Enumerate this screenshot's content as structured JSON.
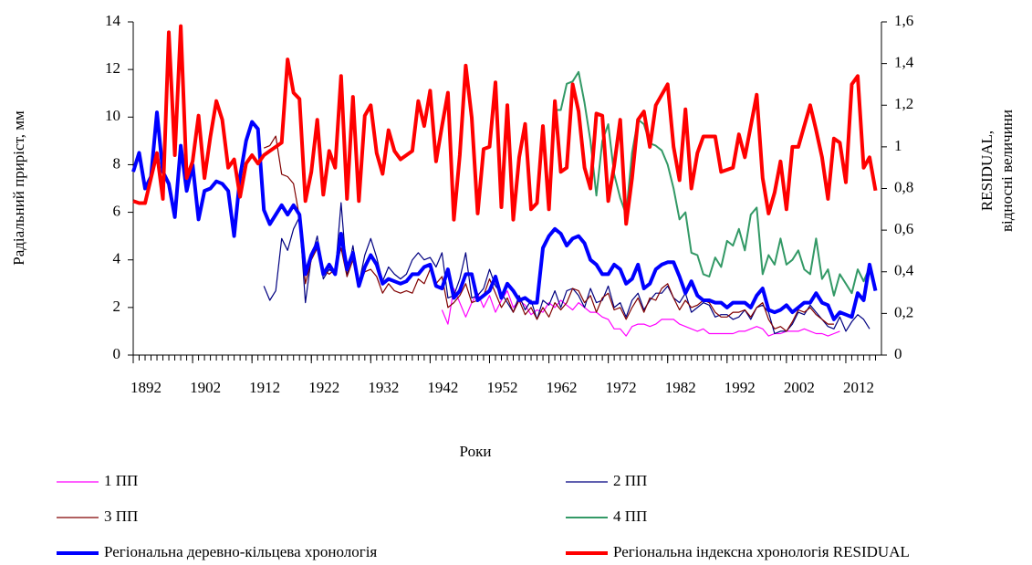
{
  "chart_data": {
    "type": "line",
    "x_label": "Роки",
    "y_label": "Радіальний приріст, мм",
    "y2_label": [
      "RESIDUAL,",
      "відносні величини"
    ],
    "xlim": [
      1892,
      2018
    ],
    "xticks": [
      1892,
      1902,
      1912,
      1922,
      1932,
      1942,
      1952,
      1962,
      1972,
      1982,
      1992,
      2002,
      2012
    ],
    "ylim": [
      0,
      14
    ],
    "yticks": [
      0,
      2,
      4,
      6,
      8,
      10,
      12,
      14
    ],
    "y2lim": [
      0,
      1.6
    ],
    "y2ticks": [
      0,
      {
        "value": 0.2,
        "label": "0,2"
      },
      {
        "value": 0.4,
        "label": "0,4"
      },
      {
        "value": 0.6,
        "label": "0,6"
      },
      {
        "value": 0.8,
        "label": "0,8"
      },
      {
        "value": 1,
        "label": "1"
      },
      {
        "value": 1.2,
        "label": "1,2"
      },
      {
        "value": 1.4,
        "label": "1,4"
      },
      {
        "value": 1.6,
        "label": "1,6"
      }
    ],
    "x": [
      1892,
      1893,
      1894,
      1895,
      1896,
      1897,
      1898,
      1899,
      1900,
      1901,
      1902,
      1903,
      1904,
      1905,
      1906,
      1907,
      1908,
      1909,
      1910,
      1911,
      1912,
      1913,
      1914,
      1915,
      1916,
      1917,
      1918,
      1919,
      1920,
      1921,
      1922,
      1923,
      1924,
      1925,
      1926,
      1927,
      1928,
      1929,
      1930,
      1931,
      1932,
      1933,
      1934,
      1935,
      1936,
      1937,
      1938,
      1939,
      1940,
      1941,
      1942,
      1943,
      1944,
      1945,
      1946,
      1947,
      1948,
      1949,
      1950,
      1951,
      1952,
      1953,
      1954,
      1955,
      1956,
      1957,
      1958,
      1959,
      1960,
      1961,
      1962,
      1963,
      1964,
      1965,
      1966,
      1967,
      1968,
      1969,
      1970,
      1971,
      1972,
      1973,
      1974,
      1975,
      1976,
      1977,
      1978,
      1979,
      1980,
      1981,
      1982,
      1983,
      1984,
      1985,
      1986,
      1987,
      1988,
      1989,
      1990,
      1991,
      1992,
      1993,
      1994,
      1995,
      1996,
      1997,
      1998,
      1999,
      2000,
      2001,
      2002,
      2003,
      2004,
      2005,
      2006,
      2007,
      2008,
      2009,
      2010,
      2011,
      2012,
      2013,
      2014,
      2015,
      2016,
      2017
    ],
    "series": [
      {
        "name": "1 ПП",
        "color": "#ff00ff",
        "width": 1.2,
        "values": [
          null,
          null,
          null,
          null,
          null,
          null,
          null,
          null,
          null,
          null,
          null,
          null,
          null,
          null,
          null,
          null,
          null,
          null,
          null,
          null,
          null,
          null,
          null,
          null,
          null,
          null,
          null,
          null,
          null,
          null,
          null,
          null,
          null,
          null,
          null,
          null,
          null,
          null,
          null,
          null,
          null,
          null,
          null,
          null,
          null,
          null,
          null,
          null,
          null,
          null,
          null,
          null,
          1.9,
          1.3,
          2.8,
          2.2,
          1.6,
          2.2,
          2.6,
          2.0,
          2.5,
          1.8,
          2.3,
          2.7,
          2.0,
          2.3,
          2.1,
          1.7,
          1.9,
          1.8,
          2.2,
          2.0,
          2.3,
          2.1,
          1.9,
          2.2,
          2.0,
          1.8,
          1.8,
          1.6,
          1.5,
          1.1,
          1.1,
          0.8,
          1.2,
          1.3,
          1.3,
          1.2,
          1.3,
          1.5,
          1.5,
          1.5,
          1.3,
          1.2,
          1.1,
          1.0,
          1.1,
          0.9,
          0.9,
          0.9,
          0.9,
          0.9,
          1.0,
          1.0,
          1.1,
          1.2,
          1.1,
          0.8,
          0.9,
          0.9,
          1.0,
          1.0,
          1.0,
          1.1,
          1.0,
          0.9,
          0.9,
          0.8,
          0.9,
          1.0,
          null,
          null,
          null,
          null,
          null,
          null
        ]
      },
      {
        "name": "2 ПП",
        "color": "#000080",
        "width": 1.2,
        "values": [
          null,
          null,
          null,
          null,
          null,
          null,
          null,
          null,
          null,
          null,
          null,
          null,
          null,
          null,
          null,
          null,
          null,
          null,
          null,
          null,
          null,
          null,
          2.9,
          2.3,
          2.7,
          4.9,
          4.4,
          5.3,
          5.8,
          2.2,
          4.1,
          5.0,
          3.2,
          3.6,
          3.4,
          6.4,
          3.3,
          4.6,
          3.0,
          4.2,
          4.9,
          4.1,
          3.1,
          3.7,
          3.4,
          3.2,
          3.4,
          4.0,
          4.3,
          4.0,
          4.1,
          3.7,
          4.3,
          2.4,
          2.5,
          3.2,
          4.3,
          2.4,
          2.5,
          2.8,
          3.6,
          2.9,
          2.6,
          2.2,
          1.8,
          2.5,
          1.9,
          2.3,
          1.5,
          2.3,
          2.1,
          2.7,
          2.0,
          2.7,
          2.8,
          2.5,
          2.0,
          2.8,
          2.2,
          2.3,
          2.9,
          2.0,
          2.2,
          1.6,
          2.3,
          2.6,
          1.9,
          2.3,
          2.6,
          2.6,
          2.9,
          2.4,
          2.2,
          2.6,
          1.8,
          2.0,
          2.2,
          2.1,
          1.6,
          1.7,
          1.7,
          1.5,
          1.6,
          1.9,
          1.5,
          2.0,
          2.1,
          1.8,
          0.9,
          1.0,
          1.0,
          1.3,
          1.8,
          1.7,
          2.1,
          1.8,
          1.5,
          1.2,
          1.1,
          1.6,
          1.0,
          1.4,
          1.7,
          1.5,
          1.1,
          null
        ]
      },
      {
        "name": "3 ПП",
        "color": "#800000",
        "width": 1.2,
        "values": [
          null,
          null,
          null,
          null,
          null,
          null,
          null,
          null,
          null,
          null,
          null,
          null,
          null,
          null,
          null,
          null,
          null,
          null,
          null,
          null,
          null,
          null,
          8.7,
          8.8,
          9.2,
          7.6,
          7.5,
          7.2,
          5.8,
          3.0,
          4.0,
          4.5,
          3.6,
          3.4,
          3.6,
          4.5,
          3.3,
          4.0,
          2.9,
          3.5,
          3.6,
          3.3,
          2.6,
          3.0,
          2.7,
          2.6,
          2.7,
          2.6,
          3.2,
          3.0,
          3.6,
          3.0,
          3.3,
          2.0,
          2.2,
          2.5,
          3.0,
          2.2,
          2.3,
          2.5,
          3.2,
          2.6,
          2.0,
          2.4,
          1.8,
          2.3,
          1.7,
          2.0,
          1.5,
          2.0,
          1.6,
          2.2,
          1.9,
          2.2,
          2.8,
          2.7,
          2.2,
          2.5,
          1.8,
          2.4,
          2.6,
          1.9,
          2.0,
          1.5,
          2.0,
          2.4,
          1.8,
          2.4,
          2.3,
          2.8,
          3.0,
          2.4,
          1.9,
          2.3,
          2.0,
          2.1,
          2.3,
          2.2,
          1.8,
          1.6,
          1.6,
          1.8,
          1.8,
          1.9,
          1.6,
          2.0,
          2.2,
          1.5,
          1.1,
          1.2,
          1.0,
          1.4,
          1.9,
          1.8,
          2.0,
          1.7,
          1.5,
          1.3,
          1.3,
          null,
          null,
          null,
          null,
          null,
          null,
          null
        ]
      },
      {
        "name": "4 ПП",
        "color": "#339966",
        "width": 2,
        "values": [
          null,
          null,
          null,
          null,
          null,
          null,
          null,
          null,
          null,
          null,
          null,
          null,
          null,
          null,
          null,
          null,
          null,
          null,
          null,
          null,
          null,
          null,
          null,
          null,
          null,
          null,
          null,
          null,
          null,
          null,
          null,
          null,
          null,
          null,
          null,
          null,
          null,
          null,
          null,
          null,
          null,
          null,
          null,
          null,
          null,
          null,
          null,
          null,
          null,
          null,
          null,
          null,
          null,
          null,
          null,
          null,
          null,
          null,
          null,
          null,
          null,
          null,
          null,
          null,
          null,
          null,
          null,
          null,
          null,
          null,
          null,
          10.3,
          10.3,
          11.4,
          11.5,
          11.9,
          10.6,
          9.0,
          6.7,
          9.0,
          9.7,
          7.6,
          6.6,
          5.9,
          8.5,
          9.9,
          9.7,
          8.9,
          8.8,
          8.6,
          8.0,
          7.0,
          5.7,
          6.0,
          4.3,
          4.2,
          3.4,
          3.3,
          4.1,
          3.7,
          4.8,
          4.6,
          5.3,
          4.4,
          5.9,
          6.2,
          3.4,
          4.2,
          3.8,
          4.9,
          3.8,
          4.0,
          4.4,
          3.6,
          3.4,
          4.9,
          3.2,
          3.6,
          2.5,
          3.4,
          3.0,
          2.6,
          3.6,
          3.1,
          3.7,
          null
        ]
      },
      {
        "name": "Регіональна деревно-кільцева хронологія",
        "color": "#0000ff",
        "width": 4,
        "values": [
          7.7,
          8.5,
          7.0,
          7.5,
          10.2,
          7.7,
          7.2,
          5.8,
          8.8,
          6.9,
          8.0,
          5.7,
          6.9,
          7.0,
          7.3,
          7.2,
          6.9,
          5.0,
          7.5,
          9.0,
          9.8,
          9.5,
          6.1,
          5.5,
          5.9,
          6.3,
          5.9,
          6.3,
          5.9,
          3.4,
          4.2,
          4.7,
          3.4,
          3.8,
          3.4,
          5.1,
          3.6,
          4.3,
          2.9,
          3.7,
          4.2,
          3.8,
          3.0,
          3.2,
          3.1,
          3.0,
          3.1,
          3.4,
          3.4,
          3.7,
          3.8,
          2.9,
          2.8,
          3.6,
          2.4,
          2.7,
          3.4,
          3.4,
          2.3,
          2.5,
          2.7,
          3.3,
          2.4,
          3.0,
          2.7,
          2.3,
          2.4,
          2.2,
          2.2,
          4.5,
          5.0,
          5.3,
          5.1,
          4.6,
          4.9,
          5.0,
          4.7,
          4.0,
          3.8,
          3.4,
          3.4,
          3.8,
          3.6,
          3.0,
          3.2,
          3.8,
          2.8,
          3.0,
          3.6,
          3.8,
          3.9,
          3.9,
          3.3,
          2.6,
          3.1,
          2.5,
          2.3,
          2.3,
          2.2,
          2.2,
          2.0,
          2.2,
          2.2,
          2.2,
          2.0,
          2.5,
          2.8,
          1.9,
          1.8,
          1.9,
          2.1,
          1.8,
          2.0,
          2.2,
          2.2,
          2.6,
          2.2,
          2.1,
          1.5,
          1.8,
          1.7,
          1.6,
          2.6,
          2.3,
          3.8,
          2.7
        ]
      },
      {
        "name": "Регіональна індексна хронологія RESIDUAL",
        "color": "#ff0000",
        "width": 4,
        "axis": "y2",
        "values": [
          0.74,
          0.73,
          0.73,
          0.85,
          0.97,
          0.75,
          1.55,
          0.96,
          1.58,
          0.85,
          0.93,
          1.15,
          0.85,
          1.05,
          1.22,
          1.13,
          0.9,
          0.94,
          0.76,
          0.92,
          0.96,
          0.92,
          0.96,
          0.98,
          1.0,
          1.02,
          1.42,
          1.26,
          1.23,
          0.74,
          0.88,
          1.13,
          0.77,
          0.98,
          0.9,
          1.34,
          0.75,
          1.24,
          0.74,
          1.15,
          1.2,
          0.97,
          0.87,
          1.08,
          0.98,
          0.94,
          0.96,
          0.98,
          1.22,
          1.1,
          1.27,
          0.93,
          1.1,
          1.26,
          0.65,
          0.96,
          1.39,
          1.14,
          0.68,
          0.99,
          1.0,
          1.31,
          0.71,
          1.2,
          0.65,
          0.95,
          1.11,
          0.7,
          0.73,
          1.1,
          0.7,
          1.22,
          0.88,
          0.9,
          1.3,
          1.17,
          0.9,
          0.8,
          1.16,
          1.15,
          0.74,
          0.91,
          1.13,
          0.63,
          0.85,
          1.13,
          1.17,
          1.0,
          1.2,
          1.25,
          1.3,
          1.0,
          0.84,
          1.18,
          0.8,
          0.97,
          1.05,
          1.05,
          1.05,
          0.88,
          0.89,
          0.9,
          1.06,
          0.95,
          1.1,
          1.25,
          0.85,
          0.68,
          0.78,
          0.93,
          0.7,
          1.0,
          1.0,
          1.1,
          1.2,
          1.08,
          0.95,
          0.75,
          1.04,
          1.02,
          0.83,
          1.3,
          1.34,
          0.9,
          0.95,
          0.79
        ]
      }
    ]
  }
}
